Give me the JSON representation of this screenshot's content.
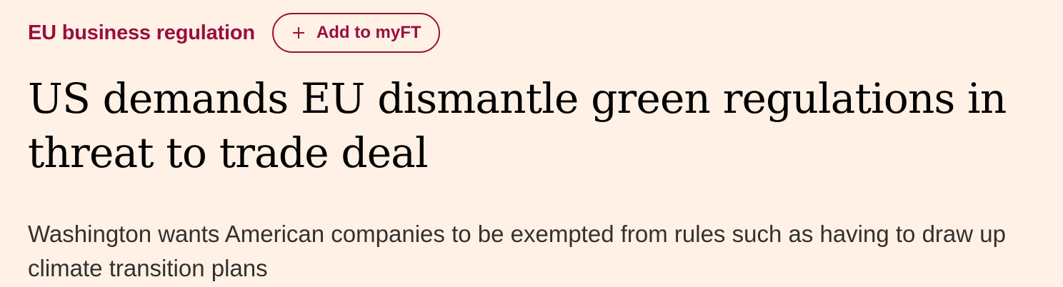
{
  "topic": {
    "label": "EU business regulation"
  },
  "myft_button": {
    "icon": "plus-icon",
    "label": "Add to myFT"
  },
  "article": {
    "headline": "US demands EU dismantle green regulations in threat to trade deal",
    "standfirst": "Washington wants American companies to be exempted from rules such as having to draw up climate transition plans"
  },
  "colors": {
    "background": "#fff1e5",
    "accent": "#990f3d",
    "headline": "#000000",
    "standfirst": "#33302e"
  }
}
